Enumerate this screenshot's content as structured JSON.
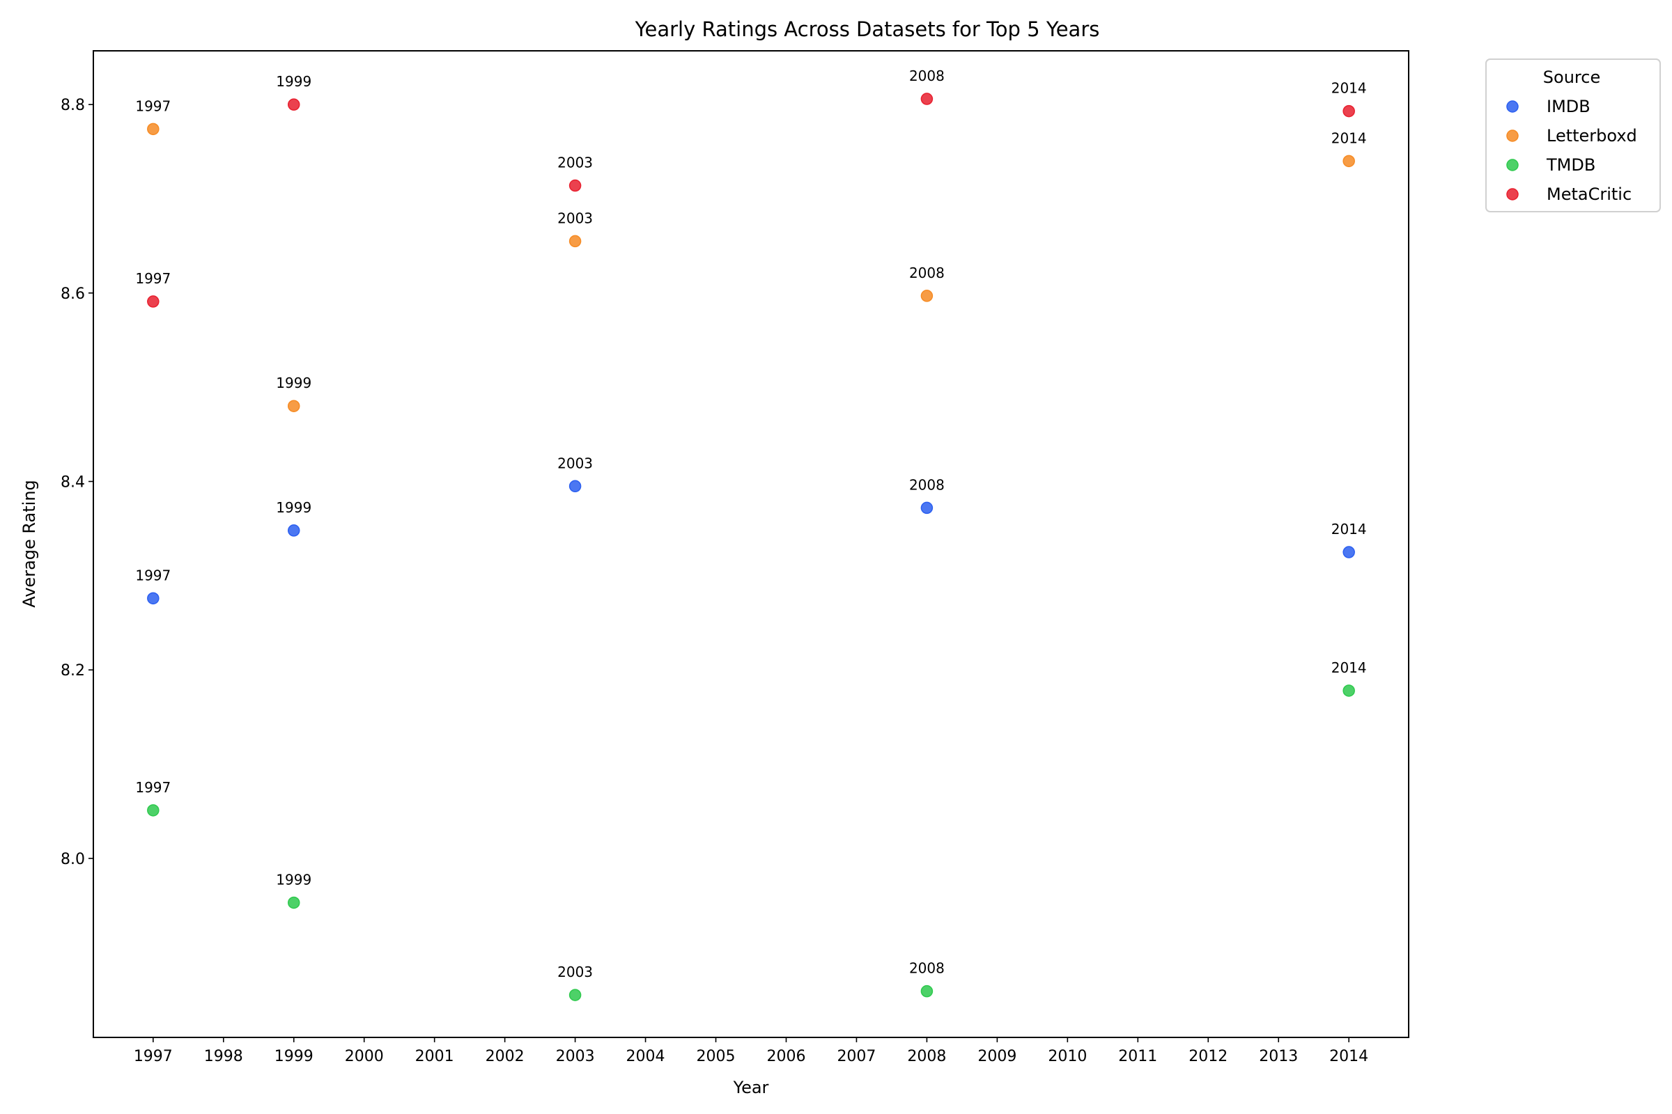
{
  "chart_data": {
    "type": "scatter",
    "title": "Yearly Ratings Across Datasets for Top 5 Years",
    "xlabel": "Year",
    "ylabel": "Average Rating",
    "xlim": [
      1996.15,
      2014.85
    ],
    "ylim": [
      7.81,
      8.857
    ],
    "x_ticks": [
      "1997",
      "1998",
      "1999",
      "2000",
      "2001",
      "2002",
      "2003",
      "2004",
      "2005",
      "2006",
      "2007",
      "2008",
      "2009",
      "2010",
      "2011",
      "2012",
      "2013",
      "2014"
    ],
    "y_ticks": [
      "8.0",
      "8.2",
      "8.4",
      "8.6",
      "8.8"
    ],
    "grid": false,
    "legend": {
      "title": "Source",
      "placement": "outside-top-right"
    },
    "series": [
      {
        "name": "IMDB",
        "color": "#2b5ff0",
        "points": [
          {
            "x": 1997,
            "y": 8.276,
            "label": "1997"
          },
          {
            "x": 1999,
            "y": 8.348,
            "label": "1999"
          },
          {
            "x": 2003,
            "y": 8.395,
            "label": "2003"
          },
          {
            "x": 2008,
            "y": 8.372,
            "label": "2008"
          },
          {
            "x": 2014,
            "y": 8.325,
            "label": "2014"
          }
        ]
      },
      {
        "name": "Letterboxd",
        "color": "#f68b24",
        "points": [
          {
            "x": 1997,
            "y": 8.774,
            "label": "1997"
          },
          {
            "x": 1999,
            "y": 8.48,
            "label": "1999"
          },
          {
            "x": 2003,
            "y": 8.655,
            "label": "2003"
          },
          {
            "x": 2008,
            "y": 8.597,
            "label": "2008"
          },
          {
            "x": 2014,
            "y": 8.74,
            "label": "2014"
          }
        ]
      },
      {
        "name": "TMDB",
        "color": "#2ec94d",
        "points": [
          {
            "x": 1997,
            "y": 8.051,
            "label": "1997"
          },
          {
            "x": 1999,
            "y": 7.953,
            "label": "1999"
          },
          {
            "x": 2003,
            "y": 7.855,
            "label": "2003"
          },
          {
            "x": 2008,
            "y": 7.859,
            "label": "2008"
          },
          {
            "x": 2014,
            "y": 8.178,
            "label": "2014"
          }
        ]
      },
      {
        "name": "MetaCritic",
        "color": "#e8202f",
        "points": [
          {
            "x": 1997,
            "y": 8.591,
            "label": "1997"
          },
          {
            "x": 1999,
            "y": 8.8,
            "label": "1999"
          },
          {
            "x": 2003,
            "y": 8.714,
            "label": "2003"
          },
          {
            "x": 2008,
            "y": 8.806,
            "label": "2008"
          },
          {
            "x": 2014,
            "y": 8.793,
            "label": "2014"
          }
        ]
      }
    ]
  }
}
